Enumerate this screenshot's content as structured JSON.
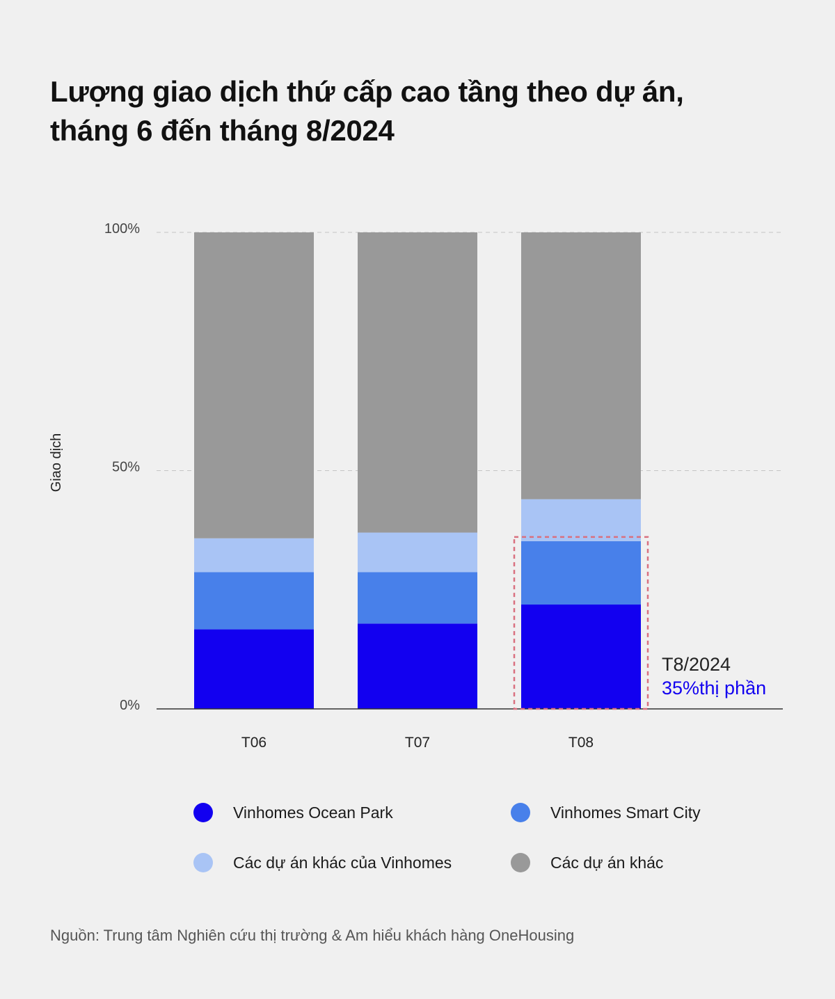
{
  "title_lines": [
    "Lượng giao dịch thứ cấp cao tầng theo dự án,",
    "tháng 6 đến tháng 8/2024"
  ],
  "source": "Nguồn: Trung tâm Nghiên cứu thị trường & Am hiểu khách hàng OneHousing",
  "chart_data": {
    "type": "bar",
    "stacked": true,
    "title": "Lượng giao dịch thứ cấp cao tầng theo dự án, tháng 6 đến tháng 8/2024",
    "xlabel": "",
    "ylabel": "Giao dịch",
    "ylim": [
      0,
      100
    ],
    "yticks": [
      0,
      50,
      100
    ],
    "ytick_labels": [
      "0%",
      "50%",
      "100%"
    ],
    "categories": [
      "T06",
      "T07",
      "T08"
    ],
    "series": [
      {
        "name": "Vinhomes Ocean Park",
        "color": "#1200f0",
        "values": [
          16.7,
          17.9,
          21.9
        ]
      },
      {
        "name": "Vinhomes Smart City",
        "color": "#4880ea",
        "values": [
          12.0,
          10.8,
          13.3
        ]
      },
      {
        "name": "Các dự án khác của Vinhomes",
        "color": "#a9c4f5",
        "values": [
          7.1,
          8.3,
          8.8
        ]
      },
      {
        "name": "Các dự án khác",
        "color": "#999999",
        "values": [
          64.2,
          63.0,
          56.0
        ]
      }
    ],
    "grid": "dashed horizontal",
    "legend_position": "bottom",
    "annotation": {
      "category": "T08",
      "line1": "T8/2024",
      "line2": "35%thị phần",
      "line2_color": "#1200f0",
      "box_color": "#d9707f"
    }
  }
}
